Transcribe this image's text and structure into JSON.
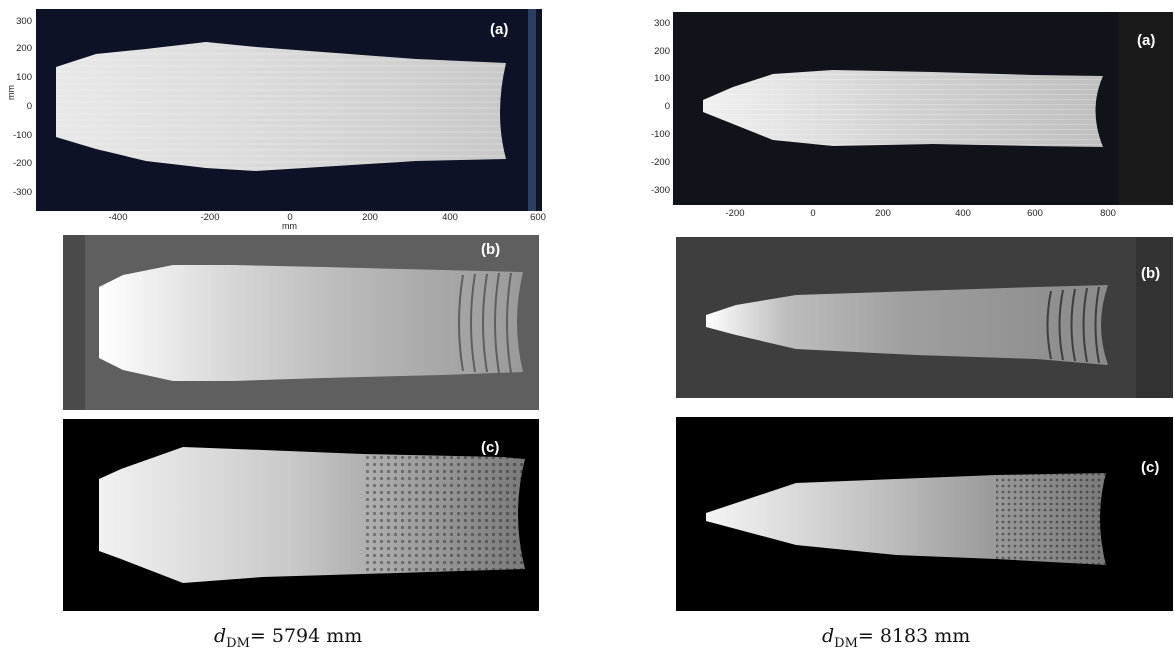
{
  "left": {
    "panel_a": {
      "label": "(a)",
      "y_label": "mm",
      "x_label": "mm",
      "y_ticks": [
        "300",
        "200",
        "100",
        "0",
        "-100",
        "-200",
        "-300"
      ],
      "x_ticks": [
        "-400",
        "-200",
        "0",
        "200",
        "400",
        "600"
      ]
    },
    "panel_b": {
      "label": "(b)"
    },
    "panel_c": {
      "label": "(c)"
    },
    "caption": {
      "var": "d",
      "sub": "DM",
      "text": "= 5794 mm"
    }
  },
  "right": {
    "panel_a": {
      "label": "(a)",
      "y_ticks": [
        "300",
        "200",
        "100",
        "0",
        "-100",
        "-200",
        "-300"
      ],
      "x_ticks": [
        "-200",
        "0",
        "200",
        "400",
        "600",
        "800"
      ]
    },
    "panel_b": {
      "label": "(b)"
    },
    "panel_c": {
      "label": "(c)"
    },
    "caption": {
      "var": "d",
      "sub": "DM",
      "text": "= 8183 mm"
    }
  }
}
